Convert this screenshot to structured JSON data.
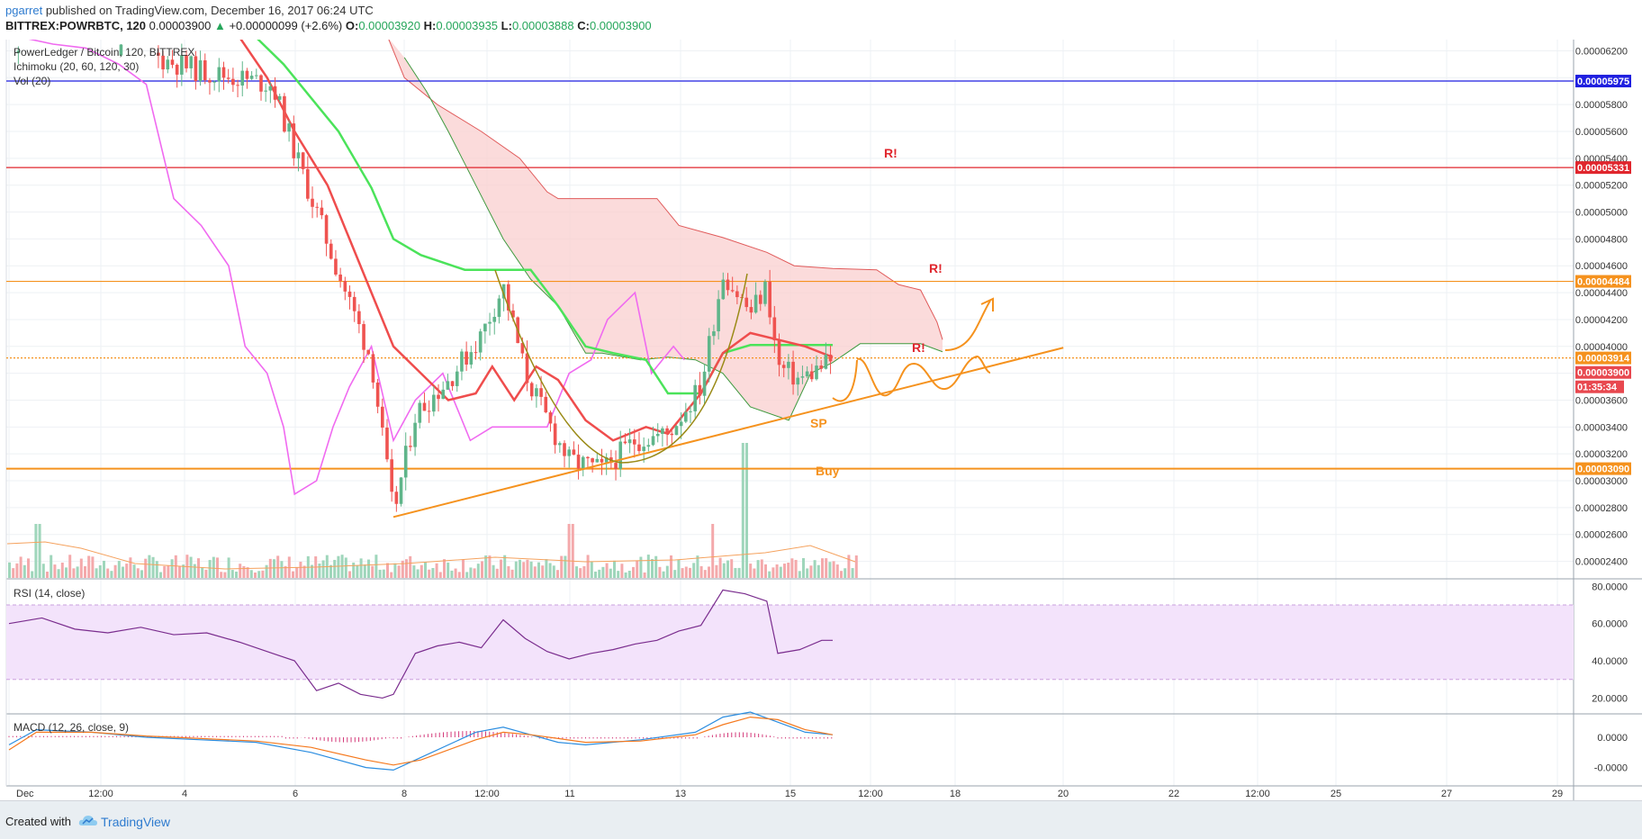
{
  "header": {
    "user": "pgarret",
    "published_text": " published on TradingView.com, December 16, 2017 06:24 UTC",
    "symbol": "BITTREX:POWRBTC, 120",
    "last": "0.00003900",
    "arrow": "▲",
    "change": "+0.00000099 (+2.6%)",
    "o_label": "O:",
    "o_value": "0.00003920",
    "h_label": "H:",
    "h_value": "0.00003935",
    "l_label": "L:",
    "l_value": "0.00003888",
    "c_label": "C:",
    "c_value": "0.00003900"
  },
  "legend": {
    "title": "PowerLedger / Bitcoin, 120, BITTREX",
    "ichimoku": "Ichimoku (20, 60, 120, 30)",
    "vol": "Vol (20)",
    "rsi": "RSI (14, close)",
    "macd": "MACD (12, 26, close, 9)"
  },
  "annotations": {
    "r1": "R!",
    "r2": "R!",
    "r3": "R!",
    "sp": "SP",
    "buy": "Buy"
  },
  "price_tags": [
    {
      "text": "0.00005975",
      "color": "#1f1fe0"
    },
    {
      "text": "0.00005331",
      "color": "#e0262d"
    },
    {
      "text": "0.00004484",
      "color": "#f5921e"
    },
    {
      "text": "0.00003914",
      "color": "#f5921e"
    },
    {
      "text": "0.00003900",
      "color": "#e8484f"
    },
    {
      "text": "01:35:34",
      "color": "#e8484f"
    },
    {
      "text": "0.00003090",
      "color": "#f5921e"
    }
  ],
  "footer": {
    "created_with": "Created with",
    "brand": "TradingView"
  },
  "colors": {
    "tenkan": "#ef4d4d",
    "kijun": "#4be35a",
    "chikou": "#f06af0",
    "cloud": "#f9cfcf",
    "up": "#5fb58a",
    "down": "#ef5350",
    "orange": "#f5921e"
  },
  "chart_data": [
    {
      "type": "candlestick",
      "title": "PowerLedger / Bitcoin, 120, BITTREX",
      "x_ticks": [
        "Dec",
        "12:00",
        "4",
        "6",
        "8",
        "12:00",
        "11",
        "13",
        "15",
        "12:00",
        "18",
        "20",
        "22",
        "12:00",
        "25",
        "27",
        "29"
      ],
      "y_ticks": [
        "0.00006200",
        "0.00006000",
        "0.00005800",
        "0.00005600",
        "0.00005400",
        "0.00005200",
        "0.00005000",
        "0.00004800",
        "0.00004600",
        "0.00004400",
        "0.00004200",
        "0.00004000",
        "0.00003800",
        "0.00003600",
        "0.00003400",
        "0.00003200",
        "0.00003000",
        "0.00002800",
        "0.00002600",
        "0.00002400"
      ],
      "ylim": [
        2.29e-05,
        6.27e-05
      ],
      "horizontal_levels": [
        {
          "value": 5.975e-05,
          "color": "#1f1fe0"
        },
        {
          "value": 5.331e-05,
          "color": "#e0262d"
        },
        {
          "value": 4.484e-05,
          "color": "#f5921e"
        },
        {
          "value": 3.914e-05,
          "color": "#f5921e"
        },
        {
          "value": 3.09e-05,
          "color": "#f5921e"
        }
      ],
      "trendline": [
        [
          8.0,
          2.73e-05
        ],
        [
          20.2,
          3.99e-05
        ]
      ],
      "close_path": [
        [
          1.0,
          6.25e-05
        ],
        [
          2.5,
          6.3e-05
        ],
        [
          4.5,
          6.05e-05
        ],
        [
          5.8,
          5.95e-05
        ],
        [
          6.2,
          5.45e-05
        ],
        [
          7.0,
          4.55e-05
        ],
        [
          7.6,
          3.9e-05
        ],
        [
          8.0,
          2.75e-05
        ],
        [
          8.4,
          3.5e-05
        ],
        [
          9.0,
          3.75e-05
        ],
        [
          9.6,
          4.08e-05
        ],
        [
          10.0,
          4.45e-05
        ],
        [
          10.4,
          3.8e-05
        ],
        [
          10.8,
          3.45e-05
        ],
        [
          11.2,
          3.15e-05
        ],
        [
          11.8,
          3.08e-05
        ],
        [
          12.4,
          3.3e-05
        ],
        [
          13.0,
          3.35e-05
        ],
        [
          13.6,
          3.7e-05
        ],
        [
          14.0,
          4.55e-05
        ],
        [
          14.5,
          4.25e-05
        ],
        [
          14.8,
          4.45e-05
        ],
        [
          15.0,
          3.85e-05
        ],
        [
          15.4,
          3.75e-05
        ],
        [
          15.8,
          3.85e-05
        ],
        [
          16.0,
          3.9e-05
        ]
      ]
    },
    {
      "type": "line",
      "title": "RSI (14, close)",
      "y_ticks": [
        "80.0000",
        "60.0000",
        "40.0000",
        "20.0000"
      ],
      "ylim": [
        12,
        84
      ],
      "band": [
        30,
        70
      ],
      "x": [
        1.0,
        1.6,
        2.2,
        2.8,
        3.4,
        4.0,
        4.6,
        5.2,
        5.8,
        6.2,
        6.6,
        7.0,
        7.4,
        7.8,
        8.0,
        8.4,
        8.8,
        9.2,
        9.6,
        10.0,
        10.4,
        10.8,
        11.2,
        11.6,
        12.0,
        12.4,
        12.8,
        13.2,
        13.6,
        14.0,
        14.4,
        14.8,
        15.0,
        15.4,
        15.8,
        16.0
      ],
      "values": [
        60,
        63,
        57,
        55,
        58,
        54,
        55,
        50,
        44,
        40,
        24,
        28,
        22,
        20,
        22,
        44,
        48,
        50,
        47,
        62,
        52,
        45,
        41,
        44,
        46,
        49,
        51,
        56,
        59,
        78,
        76,
        72,
        44,
        46,
        51,
        51
      ]
    },
    {
      "type": "line",
      "title": "MACD (12, 26, close, 9)",
      "y_ticks": [
        "0.0000",
        "-0.0000"
      ],
      "x": [
        1.0,
        1.5,
        2.5,
        3.5,
        4.5,
        5.5,
        6.5,
        7.5,
        8.0,
        8.5,
        9.5,
        10.0,
        10.5,
        11.0,
        11.5,
        12.5,
        13.5,
        14.0,
        14.5,
        15.0,
        15.5,
        16.0
      ],
      "series": [
        {
          "values": [
            -0.3,
            0.3,
            0.2,
            0.0,
            -0.1,
            -0.2,
            -0.6,
            -1.2,
            -1.3,
            -0.8,
            0.2,
            0.4,
            0.1,
            -0.2,
            -0.3,
            -0.1,
            0.2,
            0.8,
            1.0,
            0.6,
            0.2,
            0.1
          ]
        },
        {
          "values": [
            -0.5,
            0.2,
            0.2,
            0.05,
            -0.05,
            -0.15,
            -0.4,
            -0.9,
            -1.1,
            -0.9,
            -0.1,
            0.2,
            0.1,
            -0.05,
            -0.2,
            -0.15,
            0.1,
            0.5,
            0.8,
            0.7,
            0.3,
            0.1
          ]
        }
      ]
    }
  ]
}
